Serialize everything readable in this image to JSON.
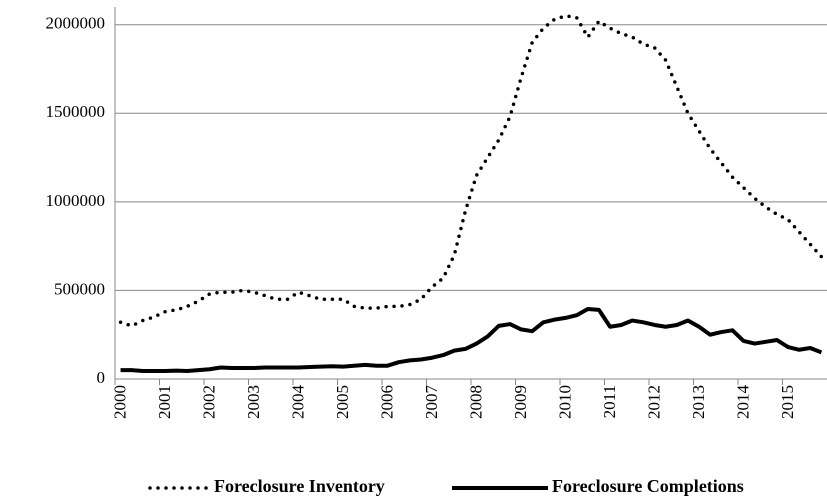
{
  "chart_data": {
    "type": "line",
    "categories": [
      "2000",
      null,
      null,
      null,
      "2001",
      null,
      null,
      null,
      "2002",
      null,
      null,
      null,
      "2003",
      null,
      null,
      null,
      "2004",
      null,
      null,
      null,
      "2005",
      null,
      null,
      null,
      "2006",
      null,
      null,
      null,
      "2007",
      null,
      null,
      null,
      "2008",
      null,
      null,
      null,
      "2009",
      null,
      null,
      null,
      "2010",
      null,
      null,
      null,
      "2011",
      null,
      null,
      null,
      "2012",
      null,
      null,
      null,
      "2013",
      null,
      null,
      null,
      "2014",
      null,
      null,
      null,
      "2015",
      null,
      null,
      null
    ],
    "series": [
      {
        "name": "Foreclosure Inventory",
        "color": "#000000",
        "style": "dotted",
        "values": [
          320000,
          300000,
          330000,
          350000,
          380000,
          390000,
          410000,
          440000,
          480000,
          490000,
          490000,
          500000,
          490000,
          470000,
          450000,
          450000,
          490000,
          470000,
          450000,
          450000,
          450000,
          410000,
          400000,
          400000,
          410000,
          410000,
          420000,
          450000,
          520000,
          570000,
          700000,
          950000,
          1150000,
          1250000,
          1350000,
          1480000,
          1700000,
          1900000,
          1980000,
          2030000,
          2050000,
          2040000,
          1930000,
          2020000,
          1980000,
          1950000,
          1930000,
          1890000,
          1870000,
          1800000,
          1650000,
          1500000,
          1400000,
          1300000,
          1220000,
          1140000,
          1080000,
          1020000,
          970000,
          930000,
          900000,
          830000,
          760000,
          690000
        ]
      },
      {
        "name": "Foreclosure Completions",
        "color": "#000000",
        "style": "solid",
        "values": [
          50000,
          50000,
          45000,
          45000,
          45000,
          47000,
          45000,
          50000,
          55000,
          65000,
          62000,
          62000,
          62000,
          65000,
          65000,
          65000,
          65000,
          68000,
          70000,
          72000,
          70000,
          75000,
          80000,
          75000,
          75000,
          95000,
          105000,
          110000,
          120000,
          135000,
          160000,
          170000,
          200000,
          240000,
          300000,
          310000,
          280000,
          270000,
          320000,
          335000,
          345000,
          360000,
          395000,
          390000,
          295000,
          305000,
          330000,
          320000,
          305000,
          295000,
          305000,
          330000,
          295000,
          250000,
          265000,
          275000,
          215000,
          200000,
          210000,
          220000,
          180000,
          165000,
          175000,
          150000
        ]
      }
    ],
    "ylim": [
      0,
      2100000
    ],
    "yticks": [
      0,
      500000,
      1000000,
      1500000,
      2000000
    ],
    "grid": true,
    "legend": "bottom"
  }
}
